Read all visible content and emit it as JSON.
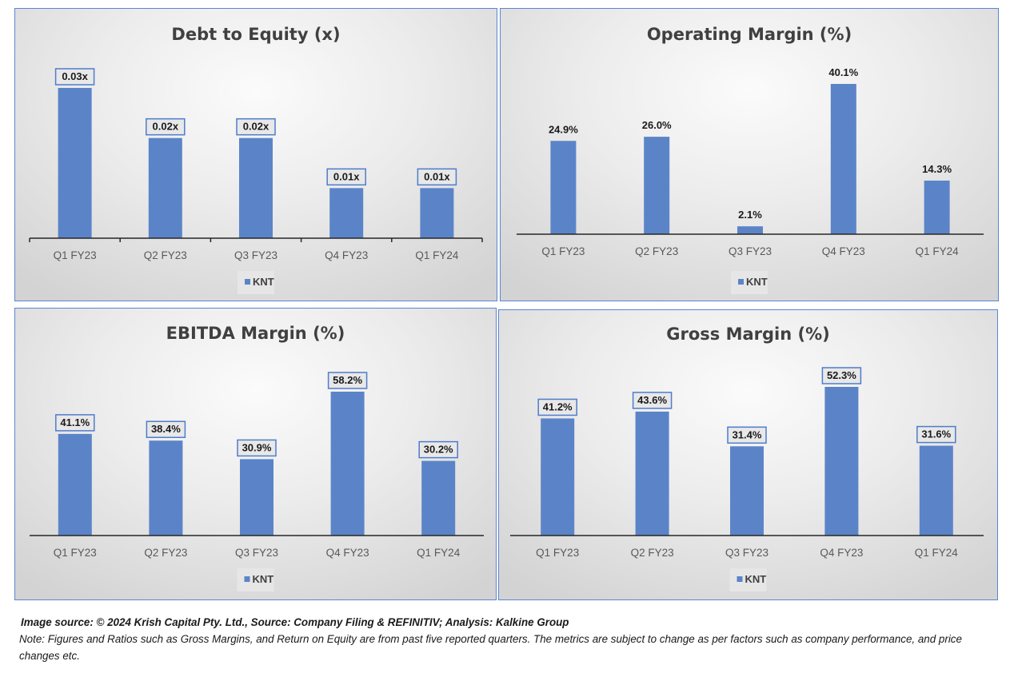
{
  "chart_data": [
    {
      "type": "bar",
      "title": "Debt to Equity (x)",
      "categories": [
        "Q1 FY23",
        "Q2 FY23",
        "Q3 FY23",
        "Q4 FY23",
        "Q1 FY24"
      ],
      "series": [
        {
          "name": "KNT",
          "values": [
            0.03,
            0.02,
            0.02,
            0.01,
            0.01
          ]
        }
      ],
      "data_labels": [
        "0.03x",
        "0.02x",
        "0.02x",
        "0.01x",
        "0.01x"
      ],
      "xlabel": "",
      "ylabel": "",
      "ylim": [
        0,
        0.03
      ],
      "grid": false,
      "legend": "bottom",
      "color": "#5b84c8"
    },
    {
      "type": "bar",
      "title": "Operating Margin (%)",
      "categories": [
        "Q1 FY23",
        "Q2 FY23",
        "Q3 FY23",
        "Q4 FY23",
        "Q1 FY24"
      ],
      "series": [
        {
          "name": "KNT",
          "values": [
            24.9,
            26.0,
            2.1,
            40.1,
            14.3
          ]
        }
      ],
      "data_labels": [
        "24.9%",
        "26.0%",
        "2.1%",
        "40.1%",
        "14.3%"
      ],
      "xlabel": "",
      "ylabel": "",
      "ylim": [
        0,
        40.1
      ],
      "grid": false,
      "legend": "bottom",
      "color": "#5b84c8"
    },
    {
      "type": "bar",
      "title": "EBITDA Margin (%)",
      "categories": [
        "Q1 FY23",
        "Q2 FY23",
        "Q3 FY23",
        "Q4 FY23",
        "Q1 FY24"
      ],
      "series": [
        {
          "name": "KNT",
          "values": [
            41.1,
            38.4,
            30.9,
            58.2,
            30.2
          ]
        }
      ],
      "data_labels": [
        "41.1%",
        "38.4%",
        "30.9%",
        "58.2%",
        "30.2%"
      ],
      "xlabel": "",
      "ylabel": "",
      "ylim": [
        0,
        58.2
      ],
      "grid": false,
      "legend": "bottom",
      "color": "#5b84c8"
    },
    {
      "type": "bar",
      "title": "Gross Margin (%)",
      "categories": [
        "Q1 FY23",
        "Q2 FY23",
        "Q3 FY23",
        "Q4 FY23",
        "Q1 FY24"
      ],
      "series": [
        {
          "name": "KNT",
          "values": [
            41.2,
            43.6,
            31.4,
            52.3,
            31.6
          ]
        }
      ],
      "data_labels": [
        "41.2%",
        "43.6%",
        "31.4%",
        "52.3%",
        "31.6%"
      ],
      "xlabel": "",
      "ylabel": "",
      "ylim": [
        0,
        52.3
      ],
      "grid": false,
      "legend": "bottom",
      "color": "#5b84c8"
    }
  ],
  "footer": {
    "source": "Image source: © 2024 Krish Capital Pty. Ltd., Source: Company Filing & REFINITIV; Analysis: Kalkine Group",
    "note": "Note: Figures and Ratios such as  Gross Margins, and Return on Equity are from past  five reported  quarters. The metrics are subject to change as per factors such as company performance, and price changes etc."
  }
}
